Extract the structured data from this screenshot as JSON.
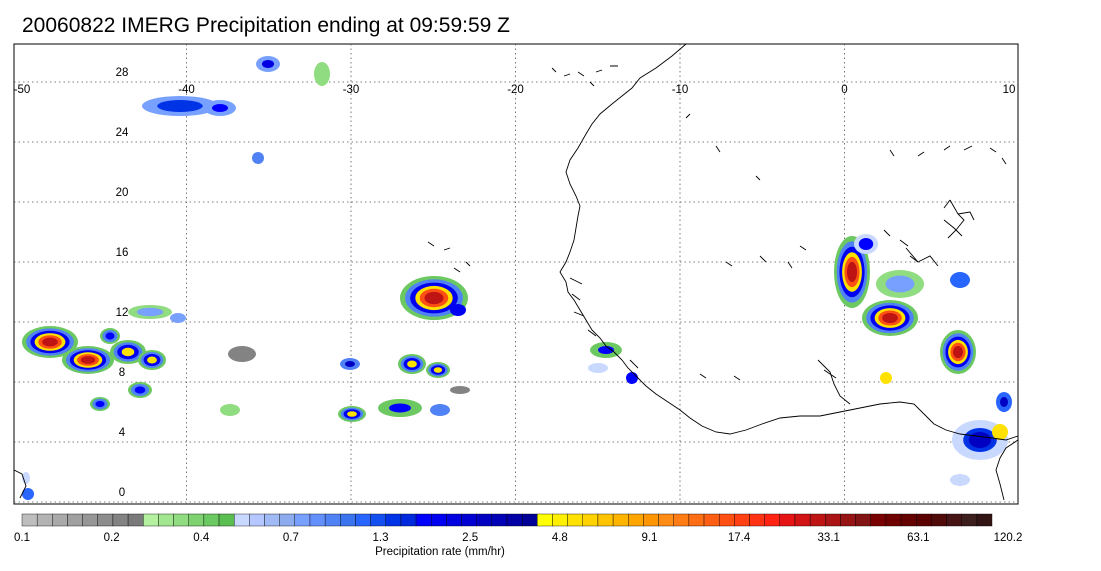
{
  "title": "20060822 IMERG Precipitation ending at 09:59:59 Z",
  "map": {
    "lon_ticks": [
      "-50",
      "-40",
      "-30",
      "-20",
      "-10",
      "0",
      "10"
    ],
    "lat_ticks": [
      "28",
      "24",
      "20",
      "16",
      "12",
      "8",
      "4",
      "0"
    ],
    "lon_range": [
      -50,
      10
    ],
    "lat_range": [
      -0.5,
      29.5
    ],
    "grid": "dotted",
    "coastline_color": "#000000"
  },
  "colorbar": {
    "label": "Precipitation rate (mm/hr)",
    "tick_labels": [
      "0.1",
      "0.2",
      "0.4",
      "0.7",
      "1.3",
      "2.5",
      "4.8",
      "9.1",
      "17.4",
      "33.1",
      "63.1",
      "120.2"
    ],
    "colors": [
      "#bdbdbd",
      "#b3b3b3",
      "#a9a9a9",
      "#a0a0a0",
      "#969696",
      "#8c8c8c",
      "#838383",
      "#7a7a7a",
      "#b4f0a0",
      "#a2e690",
      "#90dc80",
      "#7ed270",
      "#6cc860",
      "#5abe50",
      "#c8d8ff",
      "#b4c8ff",
      "#a0baf6",
      "#8cacee",
      "#78a0ff",
      "#6490ff",
      "#5082f6",
      "#3c74ee",
      "#2866ff",
      "#1450f0",
      "#0032e6",
      "#0028dc",
      "#0000ff",
      "#0000f0",
      "#0000e1",
      "#0000d2",
      "#0000c3",
      "#0000b4",
      "#0000a5",
      "#000096",
      "#ffff00",
      "#fff000",
      "#ffe100",
      "#ffd200",
      "#ffc300",
      "#ffb400",
      "#ffa500",
      "#ff9600",
      "#ff8c14",
      "#ff7d14",
      "#ff6e14",
      "#ff5f14",
      "#ff5014",
      "#ff4114",
      "#ff3214",
      "#ff2314",
      "#e61414",
      "#d21414",
      "#be1414",
      "#aa1414",
      "#961414",
      "#821414",
      "#780000",
      "#6e0000",
      "#640000",
      "#5a0000",
      "#500a0a",
      "#461414",
      "#3c1e1e",
      "#321414"
    ]
  }
}
